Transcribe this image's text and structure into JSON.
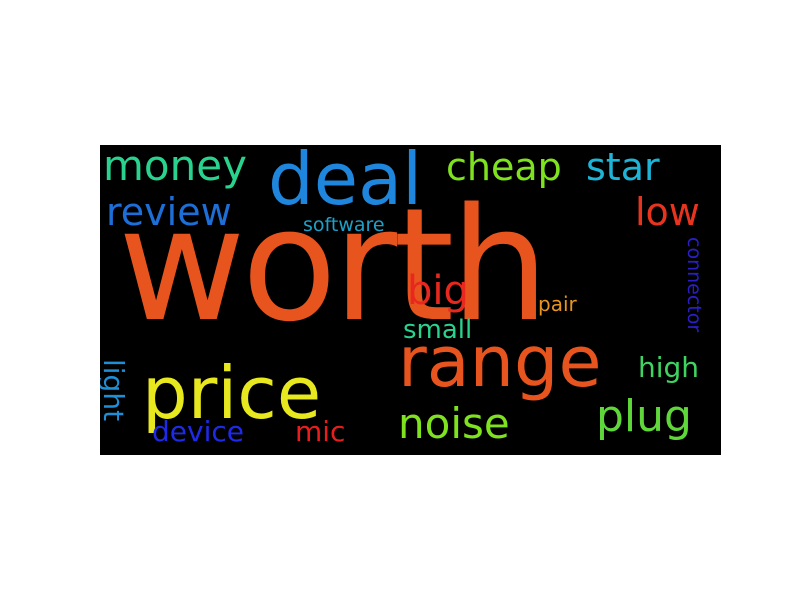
{
  "wordcloud": {
    "background": "#000000",
    "words": {
      "worth": {
        "text": "worth",
        "color": "#e8541e"
      },
      "deal": {
        "text": "deal",
        "color": "#1f86dd"
      },
      "range": {
        "text": "range",
        "color": "#e8541e"
      },
      "price": {
        "text": "price",
        "color": "#e8e81e"
      },
      "money": {
        "text": "money",
        "color": "#29d38e"
      },
      "cheap": {
        "text": "cheap",
        "color": "#7fe21e"
      },
      "star": {
        "text": "star",
        "color": "#1eb4d7"
      },
      "review": {
        "text": "review",
        "color": "#1e6ed7"
      },
      "low": {
        "text": "low",
        "color": "#e8341e"
      },
      "software": {
        "text": "software",
        "color": "#1ea0c8"
      },
      "big": {
        "text": "big",
        "color": "#e8281e"
      },
      "pair": {
        "text": "pair",
        "color": "#e8941e"
      },
      "connector": {
        "text": "connector",
        "color": "#2a1ec8"
      },
      "small": {
        "text": "small",
        "color": "#29d38e"
      },
      "high": {
        "text": "high",
        "color": "#3fd360"
      },
      "light": {
        "text": "light",
        "color": "#1e8ed7"
      },
      "device": {
        "text": "device",
        "color": "#1e2ae8"
      },
      "mic": {
        "text": "mic",
        "color": "#e81e1e"
      },
      "noise": {
        "text": "noise",
        "color": "#7fe21e"
      },
      "plug": {
        "text": "plug",
        "color": "#5fd63a"
      }
    }
  }
}
